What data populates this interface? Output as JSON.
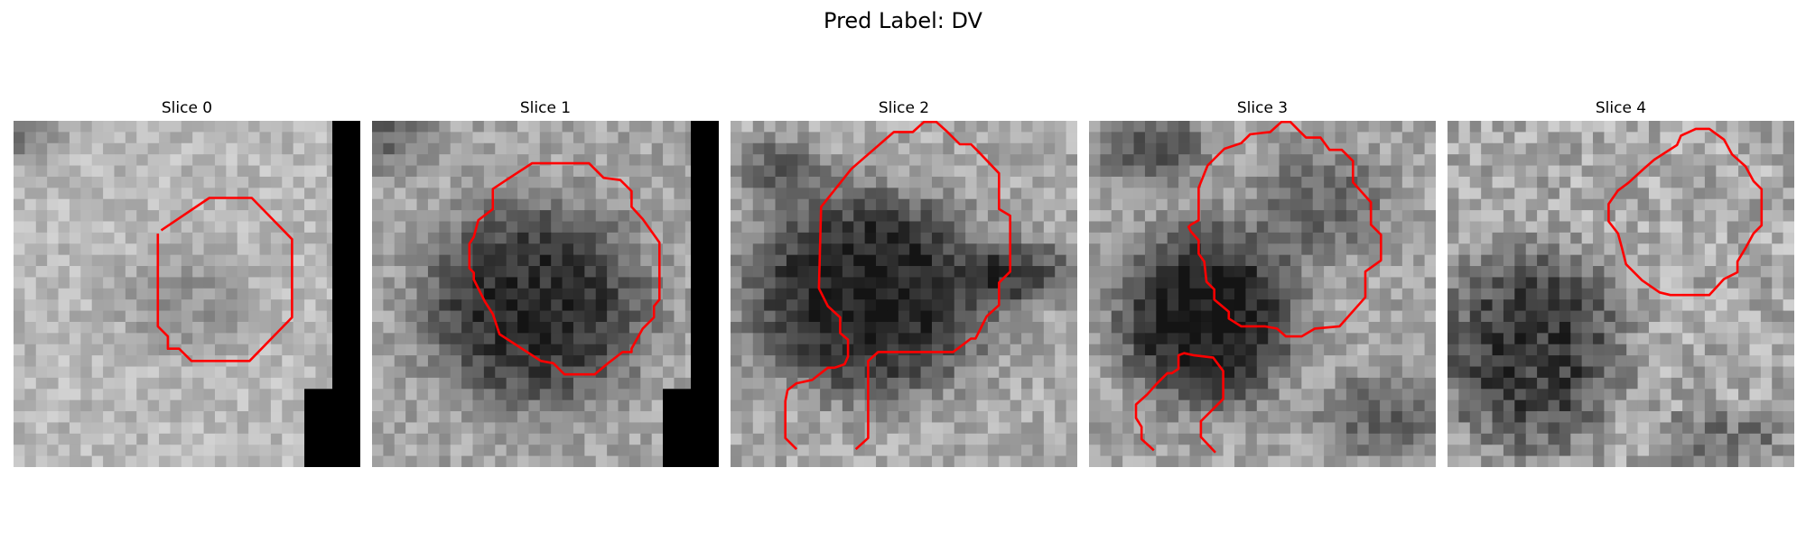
{
  "figure": {
    "title": "Pred Label: DV",
    "panels": [
      {
        "title": "Slice 0"
      },
      {
        "title": "Slice 1"
      },
      {
        "title": "Slice 2"
      },
      {
        "title": "Slice 3"
      },
      {
        "title": "Slice 4"
      }
    ]
  },
  "colors": {
    "contour": "#ff0000",
    "background": "#ffffff",
    "padding": "#000000"
  }
}
